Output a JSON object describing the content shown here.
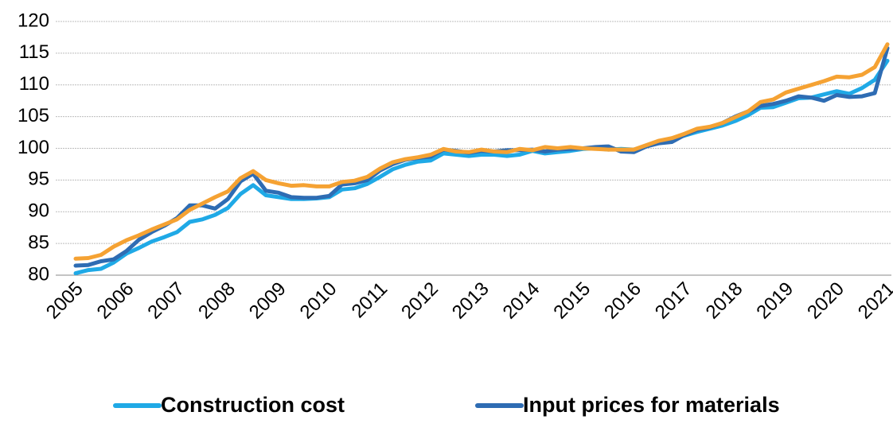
{
  "chart_data": {
    "type": "line",
    "categories": [
      "2005",
      null,
      null,
      null,
      "2006",
      null,
      null,
      null,
      "2007",
      null,
      null,
      null,
      "2008",
      null,
      null,
      null,
      "2009",
      null,
      null,
      null,
      "2010",
      null,
      null,
      null,
      "2011",
      null,
      null,
      null,
      "2012",
      null,
      null,
      null,
      "2013",
      null,
      null,
      null,
      "2014",
      null,
      null,
      null,
      "2015",
      null,
      null,
      null,
      "2016",
      null,
      null,
      null,
      "2017",
      null,
      null,
      null,
      "2018",
      null,
      null,
      null,
      "2019",
      null,
      null,
      null,
      "2020",
      null,
      null,
      null,
      "2021"
    ],
    "series": [
      {
        "name": "Construction cost",
        "color": "#1fa9e6",
        "values": [
          80.3,
          80.8,
          81.0,
          82.0,
          83.4,
          84.3,
          85.3,
          86.0,
          86.8,
          88.4,
          88.8,
          89.5,
          90.6,
          92.8,
          94.2,
          92.6,
          92.3,
          92.0,
          92.0,
          92.1,
          92.3,
          93.5,
          93.7,
          94.4,
          95.5,
          96.7,
          97.4,
          97.9,
          98.1,
          99.2,
          99.0,
          98.8,
          99.0,
          99.0,
          98.8,
          99.0,
          99.6,
          99.2,
          99.4,
          99.6,
          99.9,
          100.0,
          99.8,
          99.9,
          99.8,
          100.3,
          101.0,
          101.4,
          102.0,
          102.6,
          103.1,
          103.6,
          104.3,
          105.2,
          106.4,
          106.5,
          107.2,
          107.9,
          108.0,
          108.5,
          109.0,
          108.6,
          109.5,
          110.8,
          113.8
        ]
      },
      {
        "name": "Input prices for materials",
        "color": "#2e6cb3",
        "values": [
          81.5,
          81.6,
          82.2,
          82.5,
          83.8,
          85.6,
          86.8,
          87.8,
          89.0,
          91.0,
          91.0,
          90.5,
          92.0,
          94.8,
          96.0,
          93.3,
          93.0,
          92.3,
          92.2,
          92.2,
          92.5,
          94.3,
          94.5,
          95.0,
          96.5,
          97.5,
          98.2,
          98.5,
          98.7,
          99.8,
          99.6,
          99.3,
          99.6,
          99.5,
          99.7,
          99.7,
          99.8,
          99.5,
          99.8,
          99.9,
          100.0,
          100.2,
          100.3,
          99.5,
          99.4,
          100.3,
          100.8,
          101.0,
          102.1,
          102.9,
          103.3,
          104.0,
          105.0,
          105.8,
          106.7,
          107.0,
          107.5,
          108.2,
          108.0,
          107.5,
          108.4,
          108.1,
          108.2,
          108.7,
          115.8
        ]
      },
      {
        "color": "#f5a233",
        "values": [
          82.6,
          82.7,
          83.2,
          84.5,
          85.5,
          86.3,
          87.2,
          88.0,
          88.8,
          90.3,
          91.3,
          92.3,
          93.2,
          95.3,
          96.4,
          95.0,
          94.5,
          94.1,
          94.2,
          94.0,
          94.0,
          94.7,
          94.9,
          95.5,
          96.8,
          97.8,
          98.3,
          98.6,
          99.0,
          99.9,
          99.5,
          99.4,
          99.8,
          99.5,
          99.4,
          99.9,
          99.7,
          100.2,
          100.0,
          100.2,
          100.0,
          99.9,
          99.8,
          99.8,
          99.8,
          100.5,
          101.2,
          101.6,
          102.3,
          103.1,
          103.4,
          104.0,
          104.9,
          105.8,
          107.3,
          107.7,
          108.8,
          109.4,
          110.0,
          110.6,
          111.3,
          111.2,
          111.6,
          112.8,
          116.4
        ]
      }
    ],
    "ylim": [
      80,
      120
    ],
    "yticks": [
      80,
      85,
      90,
      95,
      100,
      105,
      110,
      115,
      120
    ],
    "grid": true
  }
}
